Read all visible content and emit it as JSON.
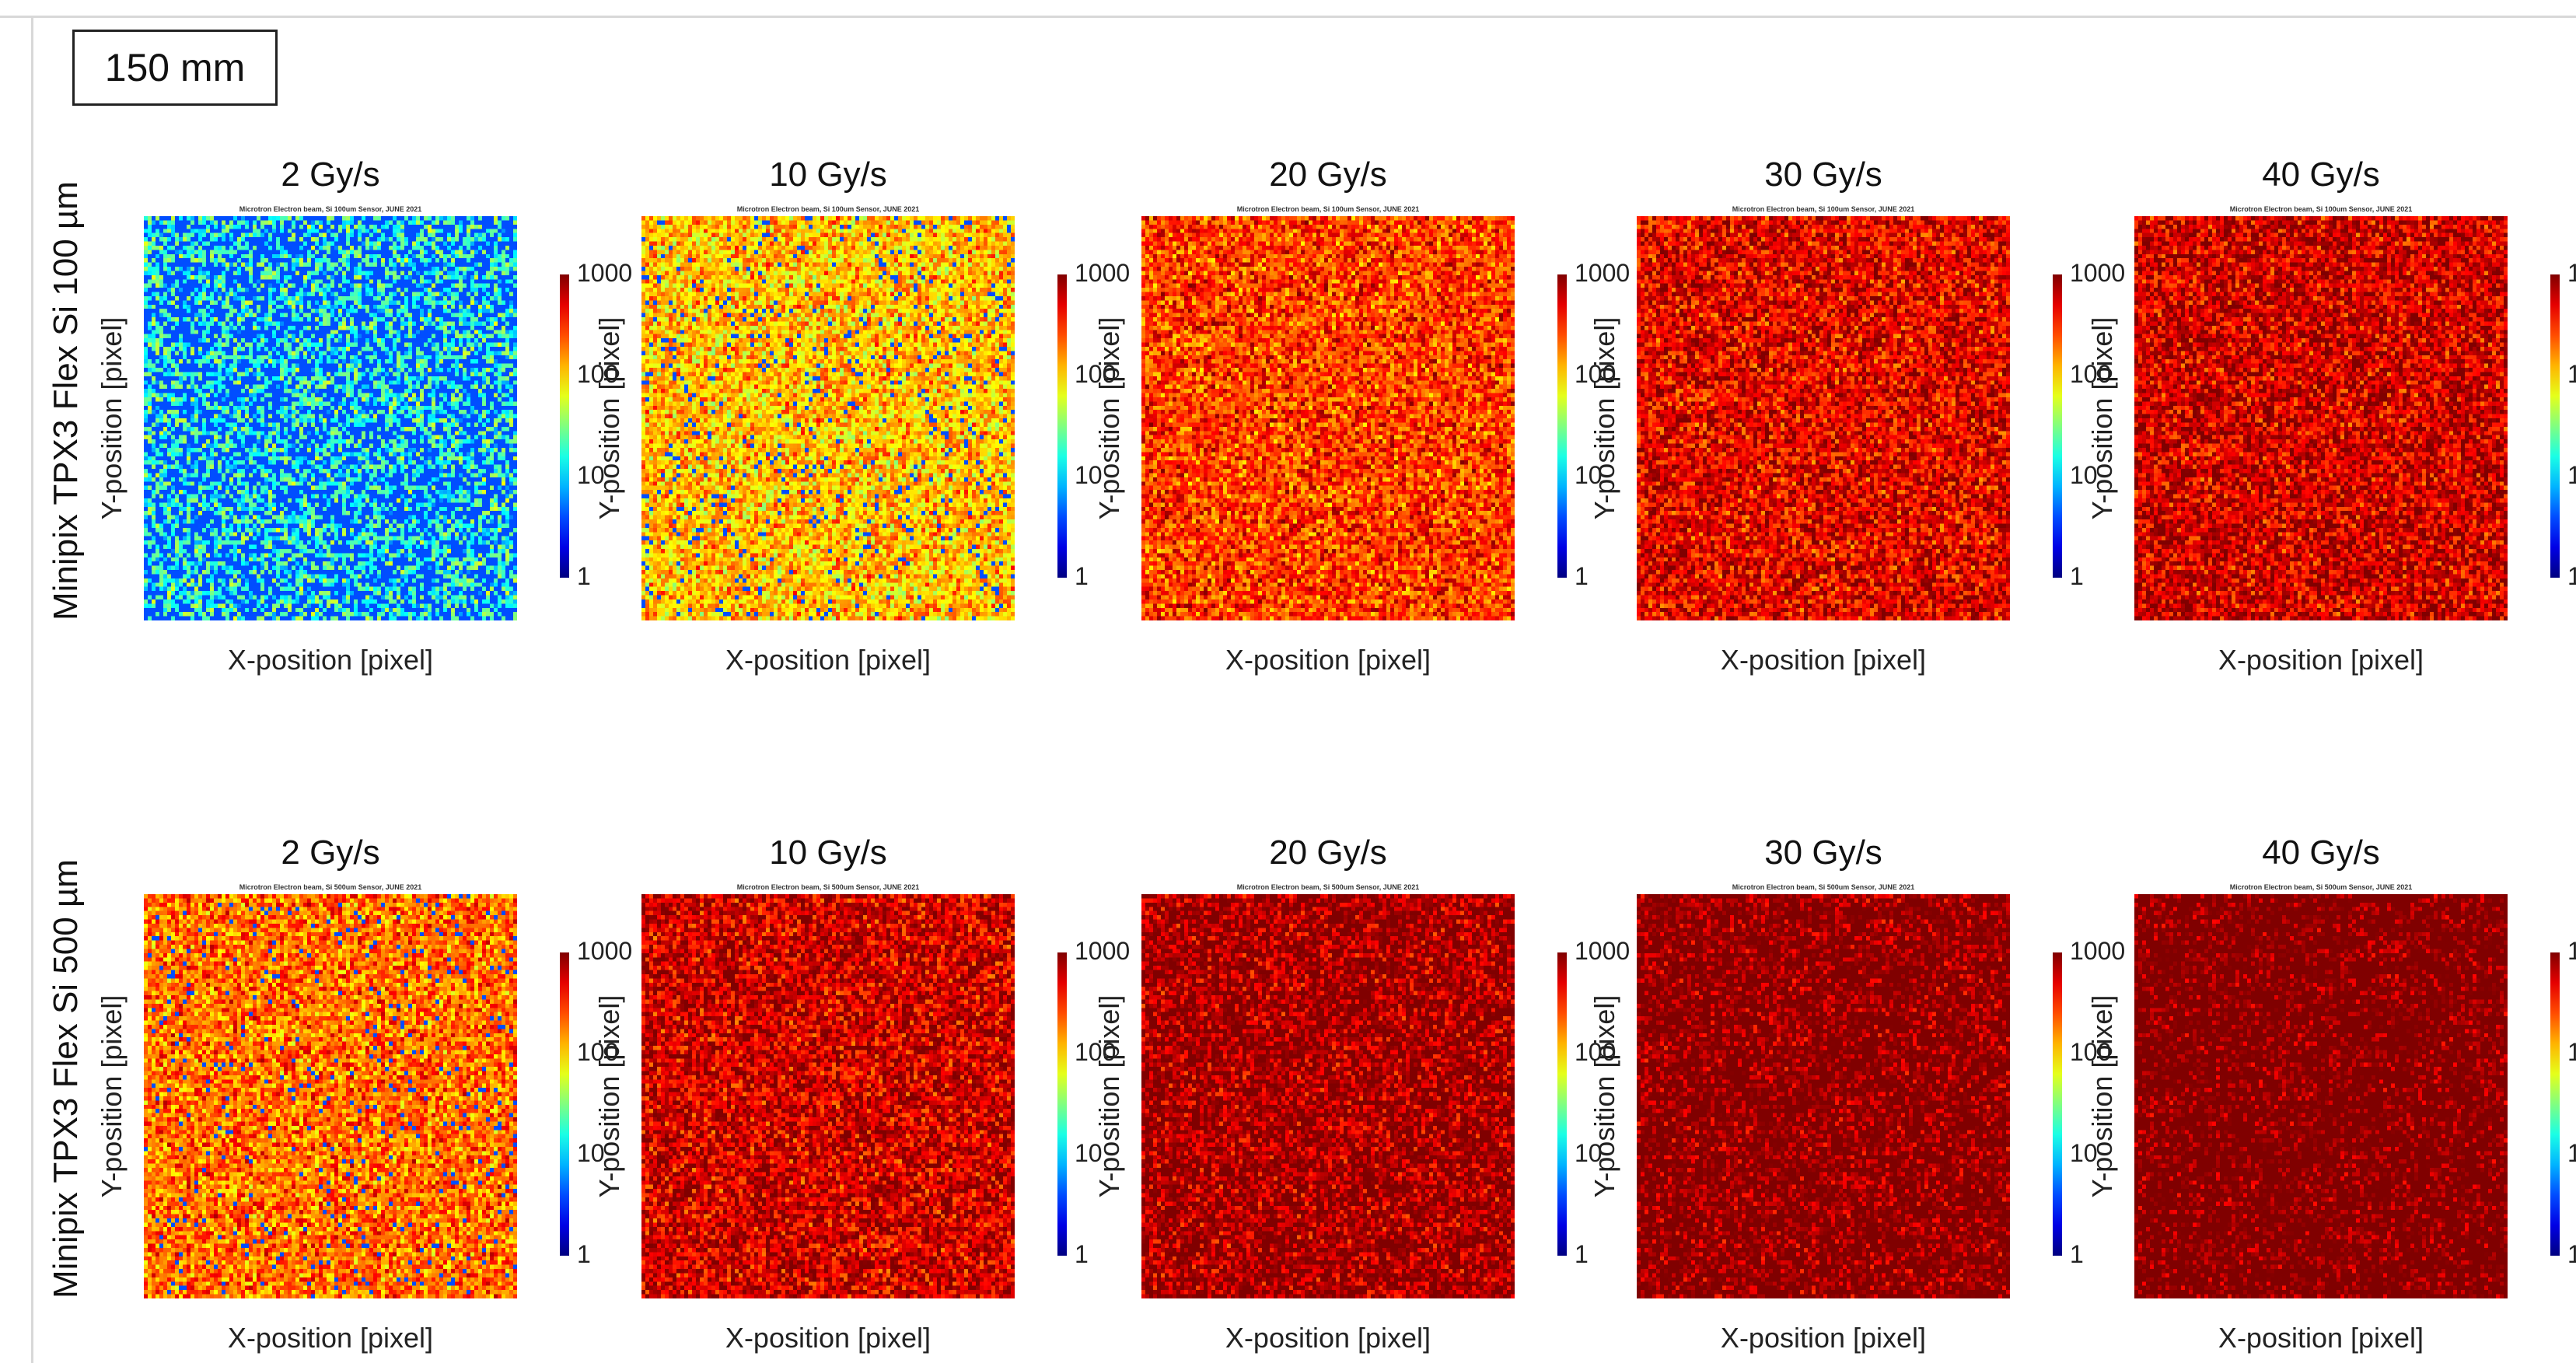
{
  "figure": {
    "label": "150 mm"
  },
  "chart_data": [
    {
      "type": "heatmap",
      "row_label": "Minipix TPX3 Flex Si 100 µm",
      "subtitle": "Microtron Electron beam, Si 100um Sensor, JUNE 2021",
      "xlabel": "X-position [pixel]",
      "ylabel": "Y-position [pixel]",
      "xlim": [
        0,
        256
      ],
      "ylim": [
        0,
        256
      ],
      "colorbar": {
        "scale": "log",
        "ticks": [
          "1",
          "10",
          "100",
          "1000"
        ],
        "colormap": "jet"
      },
      "panels": [
        {
          "title": "2 Gy/s",
          "mean_log_count": 0.9,
          "blue_fraction": 0.48
        },
        {
          "title": "10 Gy/s",
          "mean_log_count": 1.9,
          "blue_fraction": 0.06
        },
        {
          "title": "20 Gy/s",
          "mean_log_count": 2.4,
          "blue_fraction": 0.0
        },
        {
          "title": "30 Gy/s",
          "mean_log_count": 2.7,
          "blue_fraction": 0.0
        },
        {
          "title": "40 Gy/s",
          "mean_log_count": 2.8,
          "blue_fraction": 0.0
        }
      ]
    },
    {
      "type": "heatmap",
      "row_label": "Minipix TPX3 Flex Si 500 µm",
      "subtitle": "Microtron Electron beam, Si 500um Sensor, JUNE 2021",
      "xlabel": "X-position [pixel]",
      "ylabel": "Y-position [pixel]",
      "xlim": [
        0,
        256
      ],
      "ylim": [
        0,
        256
      ],
      "colorbar": {
        "scale": "log",
        "ticks": [
          "1",
          "10",
          "100",
          "1000"
        ],
        "colormap": "jet"
      },
      "panels": [
        {
          "title": "2 Gy/s",
          "mean_log_count": 2.2,
          "blue_fraction": 0.04
        },
        {
          "title": "10 Gy/s",
          "mean_log_count": 2.8,
          "blue_fraction": 0.0
        },
        {
          "title": "20 Gy/s",
          "mean_log_count": 3.0,
          "blue_fraction": 0.0
        },
        {
          "title": "30 Gy/s",
          "mean_log_count": 3.15,
          "blue_fraction": 0.0
        },
        {
          "title": "40 Gy/s",
          "mean_log_count": 3.25,
          "blue_fraction": 0.0
        }
      ]
    }
  ]
}
